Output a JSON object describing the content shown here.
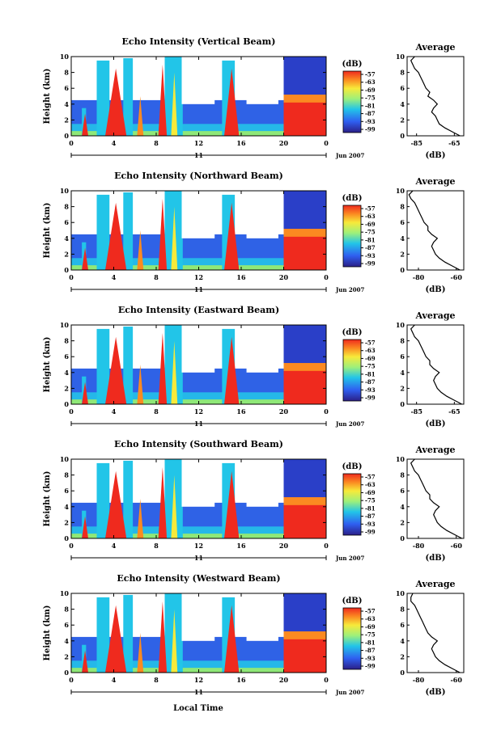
{
  "figure": {
    "x_axis_label": "Local Time",
    "day_label": "11",
    "date_label": "Jun 2007",
    "colorbar_unit": "(dB)",
    "average_title": "Average",
    "average_unit": "(dB)",
    "heatmap_ylabel": "Height (km)"
  },
  "chart_data": [
    {
      "type": "heatmap",
      "title": "Echo Intensity (Vertical Beam)",
      "xlabel": "Local Time",
      "ylabel": "Height (km)",
      "x_ticks": [
        "0",
        "4",
        "8",
        "12",
        "16",
        "20",
        "0"
      ],
      "y_ticks": [
        "0",
        "2",
        "4",
        "6",
        "8",
        "10"
      ],
      "xlim": [
        0,
        24
      ],
      "ylim": [
        0,
        10
      ],
      "colorbar": {
        "label": "(dB)",
        "ticks": [
          "-57",
          "-63",
          "-69",
          "-75",
          "-81",
          "-87",
          "-93",
          "-99"
        ]
      },
      "average": {
        "title": "Average",
        "xlabel": "(dB)",
        "x_ticks": [
          "-85",
          "-65"
        ],
        "xlim": [
          -90,
          -60
        ],
        "ylim": [
          0,
          10
        ],
        "height": [
          0,
          0.5,
          1,
          1.5,
          2,
          2.5,
          3,
          3.5,
          4,
          4.5,
          5,
          5.5,
          6,
          6.5,
          7,
          7.5,
          8,
          8.5,
          9,
          9.5,
          10
        ],
        "db": [
          -62,
          -66,
          -70,
          -73,
          -74,
          -75,
          -77,
          -76,
          -74,
          -76,
          -79,
          -78,
          -80,
          -81,
          -82,
          -83,
          -84,
          -86,
          -87,
          -88,
          -86
        ]
      }
    },
    {
      "type": "heatmap",
      "title": "Echo Intensity (Northward Beam)",
      "xlabel": "Local Time",
      "ylabel": "Height (km)",
      "x_ticks": [
        "0",
        "4",
        "8",
        "12",
        "16",
        "20",
        "0"
      ],
      "y_ticks": [
        "0",
        "2",
        "4",
        "6",
        "8",
        "10"
      ],
      "xlim": [
        0,
        24
      ],
      "ylim": [
        0,
        10
      ],
      "colorbar": {
        "label": "(dB)",
        "ticks": [
          "-57",
          "-63",
          "-69",
          "-75",
          "-81",
          "-87",
          "-93",
          "-99"
        ]
      },
      "average": {
        "title": "Average",
        "xlabel": "(dB)",
        "x_ticks": [
          "-80",
          "-60"
        ],
        "xlim": [
          -86,
          -56
        ],
        "ylim": [
          0,
          10
        ],
        "height": [
          0,
          0.5,
          1,
          1.5,
          2,
          2.5,
          3,
          3.5,
          4,
          4.5,
          5,
          5.5,
          6,
          6.5,
          7,
          7.5,
          8,
          8.5,
          9,
          9.5,
          10
        ],
        "db": [
          -58,
          -62,
          -66,
          -69,
          -71,
          -72,
          -73,
          -72,
          -70,
          -73,
          -75,
          -75,
          -77,
          -78,
          -79,
          -80,
          -81,
          -82,
          -84,
          -85,
          -83
        ]
      }
    },
    {
      "type": "heatmap",
      "title": "Echo Intensity (Eastward Beam)",
      "xlabel": "Local Time",
      "ylabel": "Height (km)",
      "x_ticks": [
        "0",
        "4",
        "8",
        "12",
        "16",
        "20",
        "0"
      ],
      "y_ticks": [
        "0",
        "2",
        "4",
        "6",
        "8",
        "10"
      ],
      "xlim": [
        0,
        24
      ],
      "ylim": [
        0,
        10
      ],
      "colorbar": {
        "label": "(dB)",
        "ticks": [
          "-57",
          "-63",
          "-69",
          "-75",
          "-81",
          "-87",
          "-93",
          "-99"
        ]
      },
      "average": {
        "title": "Average",
        "xlabel": "(dB)",
        "x_ticks": [
          "-85",
          "-65"
        ],
        "xlim": [
          -90,
          -60
        ],
        "ylim": [
          0,
          10
        ],
        "height": [
          0,
          0.5,
          1,
          1.5,
          2,
          2.5,
          3,
          3.5,
          4,
          4.5,
          5,
          5.5,
          6,
          6.5,
          7,
          7.5,
          8,
          8.5,
          9,
          9.5,
          10
        ],
        "db": [
          -61,
          -65,
          -69,
          -72,
          -74,
          -75,
          -76,
          -75,
          -73,
          -76,
          -78,
          -78,
          -80,
          -81,
          -82,
          -83,
          -84,
          -86,
          -87,
          -88,
          -86
        ]
      }
    },
    {
      "type": "heatmap",
      "title": "Echo Intensity (Southward Beam)",
      "xlabel": "Local Time",
      "ylabel": "Height (km)",
      "x_ticks": [
        "0",
        "4",
        "8",
        "12",
        "16",
        "20",
        "0"
      ],
      "y_ticks": [
        "0",
        "2",
        "4",
        "6",
        "8",
        "10"
      ],
      "xlim": [
        0,
        24
      ],
      "ylim": [
        0,
        10
      ],
      "colorbar": {
        "label": "(dB)",
        "ticks": [
          "-57",
          "-63",
          "-69",
          "-75",
          "-81",
          "-87",
          "-93",
          "-99"
        ]
      },
      "average": {
        "title": "Average",
        "xlabel": "(dB)",
        "x_ticks": [
          "-80",
          "-60"
        ],
        "xlim": [
          -86,
          -56
        ],
        "ylim": [
          0,
          10
        ],
        "height": [
          0,
          0.5,
          1,
          1.5,
          2,
          2.5,
          3,
          3.5,
          4,
          4.5,
          5,
          5.5,
          6,
          6.5,
          7,
          7.5,
          8,
          8.5,
          9,
          9.5,
          10
        ],
        "db": [
          -57,
          -61,
          -65,
          -68,
          -70,
          -71,
          -72,
          -71,
          -69,
          -72,
          -74,
          -74,
          -76,
          -77,
          -78,
          -79,
          -80,
          -82,
          -83,
          -84,
          -82
        ]
      }
    },
    {
      "type": "heatmap",
      "title": "Echo Intensity (Westward Beam)",
      "xlabel": "Local Time",
      "ylabel": "Height (km)",
      "x_ticks": [
        "0",
        "4",
        "8",
        "12",
        "16",
        "20",
        "0"
      ],
      "y_ticks": [
        "0",
        "2",
        "4",
        "6",
        "8",
        "10"
      ],
      "xlim": [
        0,
        24
      ],
      "ylim": [
        0,
        10
      ],
      "colorbar": {
        "label": "(dB)",
        "ticks": [
          "-57",
          "-63",
          "-69",
          "-75",
          "-81",
          "-87",
          "-93",
          "-99"
        ]
      },
      "average": {
        "title": "Average",
        "xlabel": "(dB)",
        "x_ticks": [
          "-80",
          "-60"
        ],
        "xlim": [
          -86,
          -56
        ],
        "ylim": [
          0,
          10
        ],
        "height": [
          0,
          0.5,
          1,
          1.5,
          2,
          2.5,
          3,
          3.5,
          4,
          4.5,
          5,
          5.5,
          6,
          6.5,
          7,
          7.5,
          8,
          8.5,
          9,
          9.5,
          10
        ],
        "db": [
          -58,
          -62,
          -66,
          -69,
          -71,
          -72,
          -73,
          -72,
          -70,
          -73,
          -75,
          -76,
          -77,
          -78,
          -79,
          -80,
          -81,
          -82,
          -84,
          -84,
          -83
        ]
      }
    }
  ]
}
